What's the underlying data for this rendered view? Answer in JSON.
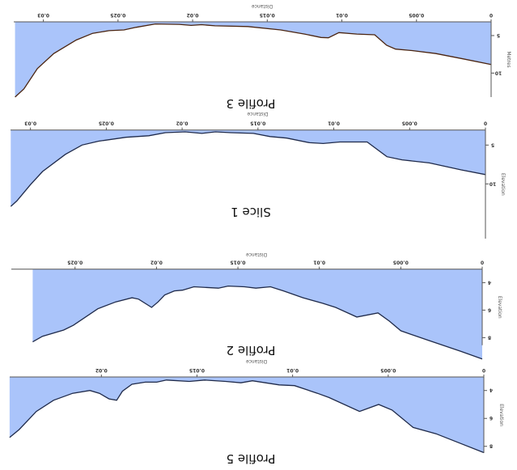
{
  "orientation": "rotated 180 degrees",
  "colors": {
    "fill": "#aac4fa",
    "axis": "#555555",
    "line_profile3": "#4a2410",
    "line_other": "#1f2a4a"
  },
  "chart_data": [
    {
      "type": "area",
      "title": "Profile 3",
      "xlabel": "Distance",
      "ylabel": "Metres",
      "xlim": [
        0,
        0.032
      ],
      "ylim": [
        3.2,
        13.2
      ],
      "y_inverted": true,
      "xticks": [
        "0",
        "0.005",
        "0.01",
        "0.015",
        "0.02",
        "0.025",
        "0.03"
      ],
      "xtick_values": [
        0,
        0.005,
        0.01,
        0.015,
        0.02,
        0.025,
        0.03
      ],
      "yticks": [
        "5",
        "10"
      ],
      "ytick_values": [
        5,
        10
      ],
      "x": [
        0.0319,
        0.0313,
        0.0304,
        0.0293,
        0.0278,
        0.0267,
        0.0256,
        0.0246,
        0.0238,
        0.0225,
        0.0209,
        0.0201,
        0.0194,
        0.0185,
        0.0163,
        0.0141,
        0.0125,
        0.0114,
        0.0109,
        0.0102,
        0.009,
        0.0078,
        0.007,
        0.0064,
        0.0053,
        0.0037,
        0.0019,
        0
      ],
      "y": [
        13.2,
        12.1,
        9.4,
        7.4,
        5.6,
        4.7,
        4.35,
        4.25,
        3.9,
        3.45,
        3.5,
        3.65,
        3.55,
        3.7,
        3.8,
        4.25,
        4.8,
        5.25,
        5.3,
        4.6,
        4.8,
        4.9,
        6.3,
        6.8,
        7.0,
        7.4,
        8.1,
        8.85
      ]
    },
    {
      "type": "area",
      "title": "Slice 1",
      "xlabel": "Distance",
      "ylabel": "Elevation",
      "xlim": [
        0,
        0.0313
      ],
      "ylim": [
        3.06,
        17
      ],
      "y_inverted": true,
      "xticks": [
        "0",
        "0.005",
        "0.01",
        "0.015",
        "0.02",
        "0.025",
        "0.03"
      ],
      "xtick_values": [
        0,
        0.005,
        0.01,
        0.015,
        0.02,
        0.025,
        0.03
      ],
      "yticks": [
        "5",
        "10"
      ],
      "ytick_values": [
        5,
        10
      ],
      "x": [
        0.0313,
        0.0309,
        0.03,
        0.0292,
        0.0277,
        0.0266,
        0.0255,
        0.0237,
        0.0222,
        0.0211,
        0.0198,
        0.0187,
        0.0178,
        0.0168,
        0.0153,
        0.0142,
        0.0131,
        0.0116,
        0.0107,
        0.0096,
        0.0078,
        0.0065,
        0.0055,
        0.0037,
        0.0016,
        0
      ],
      "y": [
        12.9,
        12.2,
        10.1,
        8.4,
        6.2,
        5.0,
        4.5,
        4.0,
        3.8,
        3.4,
        3.3,
        3.5,
        3.3,
        3.4,
        3.5,
        3.9,
        4.1,
        4.7,
        4.8,
        4.6,
        4.6,
        6.5,
        6.9,
        7.3,
        8.2,
        8.8
      ]
    },
    {
      "type": "area",
      "title": "Profile 2",
      "xlabel": "Distance",
      "ylabel": "Elevation",
      "xlim": [
        0,
        0.0276
      ],
      "ylim": [
        3.02,
        9.55
      ],
      "y_inverted": true,
      "xticks": [
        "0",
        "0.005",
        "0.01",
        "0.015",
        "0.02",
        "0.025"
      ],
      "xtick_values": [
        0,
        0.005,
        0.01,
        0.015,
        0.02,
        0.025
      ],
      "yticks": [
        "4",
        "6",
        "8"
      ],
      "ytick_values": [
        4,
        6,
        8
      ],
      "x": [
        0.0276,
        0.027,
        0.0257,
        0.0251,
        0.0236,
        0.0225,
        0.0215,
        0.0211,
        0.0203,
        0.0199,
        0.0195,
        0.0189,
        0.0184,
        0.0177,
        0.0162,
        0.0156,
        0.0146,
        0.0139,
        0.013,
        0.0122,
        0.011,
        0.0098,
        0.009,
        0.0077,
        0.0064,
        0.0057,
        0.005,
        0.0033,
        0.0013,
        0
      ],
      "y": [
        8.31,
        7.9,
        7.45,
        7.1,
        5.9,
        5.4,
        5.1,
        5.2,
        5.8,
        5.4,
        4.9,
        4.6,
        4.55,
        4.3,
        4.4,
        4.25,
        4.3,
        4.4,
        4.3,
        4.6,
        5.1,
        5.5,
        5.8,
        6.5,
        6.2,
        6.8,
        7.5,
        8.2,
        9.0,
        9.55
      ]
    },
    {
      "type": "area",
      "title": "Profile 5",
      "xlabel": "Distance",
      "ylabel": "Elevation",
      "xlim": [
        0,
        0.0248
      ],
      "ylim": [
        3.03,
        8.45
      ],
      "y_inverted": true,
      "xticks": [
        "0",
        "0.005",
        "0.01",
        "0.015",
        "0.02"
      ],
      "xtick_values": [
        0,
        0.005,
        0.01,
        0.015,
        0.02
      ],
      "yticks": [
        "4",
        "6",
        "8"
      ],
      "ytick_values": [
        4,
        6,
        8
      ],
      "x": [
        0.0248,
        0.0243,
        0.0234,
        0.0225,
        0.0215,
        0.0206,
        0.0201,
        0.0196,
        0.0192,
        0.0189,
        0.0184,
        0.0177,
        0.0171,
        0.0166,
        0.0154,
        0.0146,
        0.0135,
        0.0127,
        0.0121,
        0.0107,
        0.0099,
        0.0087,
        0.0081,
        0.0065,
        0.0055,
        0.0048,
        0.0037,
        0.0025,
        0.0012,
        0
      ],
      "y": [
        7.36,
        6.8,
        5.5,
        4.7,
        4.2,
        4.0,
        4.2,
        4.6,
        4.7,
        4.05,
        3.55,
        3.4,
        3.4,
        3.25,
        3.35,
        3.25,
        3.35,
        3.45,
        3.3,
        3.6,
        3.65,
        4.2,
        4.5,
        5.5,
        5.0,
        5.4,
        6.65,
        7.1,
        7.8,
        8.45
      ]
    }
  ]
}
